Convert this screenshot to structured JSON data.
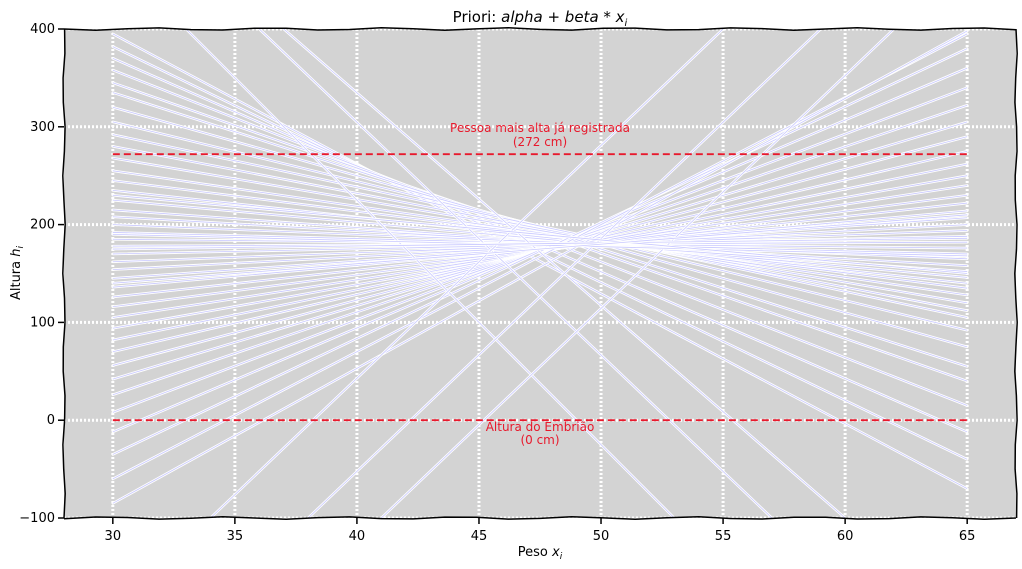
{
  "chart_data": {
    "type": "line",
    "title": "Priori: alpha + beta * x_i",
    "title_parts": {
      "prefix": "Priori: ",
      "expr": "alpha + beta * x",
      "sub": "i"
    },
    "xlabel": "Peso x_i",
    "xlabel_parts": {
      "prefix": "Peso ",
      "var": "x",
      "sub": "i"
    },
    "ylabel": "Altura h_i",
    "ylabel_parts": {
      "prefix": "Altura ",
      "var": "h",
      "sub": "i"
    },
    "xlim": [
      28,
      67
    ],
    "ylim": [
      -100,
      400
    ],
    "xticks": [
      30,
      35,
      40,
      45,
      50,
      55,
      60,
      65
    ],
    "yticks": [
      -100,
      0,
      100,
      200,
      300,
      400
    ],
    "grid": true,
    "background": "#d3d3d3",
    "series_color": "#c9c9ff",
    "reference_color": "#e8192c",
    "series": [
      {
        "x": [
          30,
          65
        ],
        "y": [
          395,
          -70
        ]
      },
      {
        "x": [
          30,
          65
        ],
        "y": [
          382,
          -40
        ]
      },
      {
        "x": [
          30,
          65
        ],
        "y": [
          370,
          -12
        ]
      },
      {
        "x": [
          30,
          65
        ],
        "y": [
          358,
          15
        ]
      },
      {
        "x": [
          30,
          65
        ],
        "y": [
          345,
          40
        ]
      },
      {
        "x": [
          30,
          65
        ],
        "y": [
          335,
          55
        ]
      },
      {
        "x": [
          30,
          65
        ],
        "y": [
          320,
          75
        ]
      },
      {
        "x": [
          30,
          65
        ],
        "y": [
          305,
          92
        ]
      },
      {
        "x": [
          30,
          65
        ],
        "y": [
          292,
          105
        ]
      },
      {
        "x": [
          30,
          65
        ],
        "y": [
          280,
          112
        ]
      },
      {
        "x": [
          30,
          65
        ],
        "y": [
          268,
          120
        ]
      },
      {
        "x": [
          30,
          65
        ],
        "y": [
          255,
          128
        ]
      },
      {
        "x": [
          30,
          65
        ],
        "y": [
          245,
          135
        ]
      },
      {
        "x": [
          30,
          65
        ],
        "y": [
          235,
          140
        ]
      },
      {
        "x": [
          30,
          65
        ],
        "y": [
          225,
          146
        ]
      },
      {
        "x": [
          30,
          65
        ],
        "y": [
          215,
          152
        ]
      },
      {
        "x": [
          30,
          65
        ],
        "y": [
          208,
          158
        ]
      },
      {
        "x": [
          30,
          65
        ],
        "y": [
          200,
          165
        ]
      },
      {
        "x": [
          30,
          65
        ],
        "y": [
          192,
          170
        ]
      },
      {
        "x": [
          30,
          65
        ],
        "y": [
          185,
          176
        ]
      },
      {
        "x": [
          30,
          65
        ],
        "y": [
          178,
          182
        ]
      },
      {
        "x": [
          30,
          65
        ],
        "y": [
          170,
          188
        ]
      },
      {
        "x": [
          30,
          65
        ],
        "y": [
          162,
          194
        ]
      },
      {
        "x": [
          30,
          65
        ],
        "y": [
          154,
          200
        ]
      },
      {
        "x": [
          30,
          65
        ],
        "y": [
          145,
          207
        ]
      },
      {
        "x": [
          30,
          65
        ],
        "y": [
          136,
          214
        ]
      },
      {
        "x": [
          30,
          65
        ],
        "y": [
          126,
          222
        ]
      },
      {
        "x": [
          30,
          65
        ],
        "y": [
          116,
          230
        ]
      },
      {
        "x": [
          30,
          65
        ],
        "y": [
          105,
          240
        ]
      },
      {
        "x": [
          30,
          65
        ],
        "y": [
          94,
          250
        ]
      },
      {
        "x": [
          30,
          65
        ],
        "y": [
          82,
          262
        ]
      },
      {
        "x": [
          30,
          65
        ],
        "y": [
          70,
          275
        ]
      },
      {
        "x": [
          30,
          65
        ],
        "y": [
          56,
          290
        ]
      },
      {
        "x": [
          30,
          65
        ],
        "y": [
          42,
          305
        ]
      },
      {
        "x": [
          30,
          65
        ],
        "y": [
          26,
          322
        ]
      },
      {
        "x": [
          30,
          65
        ],
        "y": [
          8,
          340
        ]
      },
      {
        "x": [
          30,
          65
        ],
        "y": [
          -12,
          360
        ]
      },
      {
        "x": [
          30,
          65
        ],
        "y": [
          -35,
          380
        ]
      },
      {
        "x": [
          30,
          65
        ],
        "y": [
          -60,
          395
        ]
      },
      {
        "x": [
          30,
          65
        ],
        "y": [
          -85,
          398
        ]
      },
      {
        "x": [
          33,
          53
        ],
        "y": [
          400,
          -100
        ]
      },
      {
        "x": [
          36,
          57
        ],
        "y": [
          400,
          -100
        ]
      },
      {
        "x": [
          37,
          60
        ],
        "y": [
          400,
          -100
        ]
      },
      {
        "x": [
          34,
          55
        ],
        "y": [
          -100,
          400
        ]
      },
      {
        "x": [
          38,
          59
        ],
        "y": [
          -100,
          400
        ]
      },
      {
        "x": [
          41,
          62
        ],
        "y": [
          -100,
          400
        ]
      },
      {
        "x": [
          30,
          65
        ],
        "y": [
          190,
          168
        ]
      },
      {
        "x": [
          30,
          65
        ],
        "y": [
          175,
          186
        ]
      },
      {
        "x": [
          30,
          65
        ],
        "y": [
          230,
          150
        ]
      },
      {
        "x": [
          30,
          65
        ],
        "y": [
          140,
          210
        ]
      }
    ],
    "reference_lines": [
      {
        "y": 272,
        "label_line1": "Pessoa mais alta já registrada",
        "label_line2": "(272 cm)"
      },
      {
        "y": 0,
        "label_line1": "Altura do Embrião",
        "label_line2": "(0 cm)"
      }
    ]
  }
}
